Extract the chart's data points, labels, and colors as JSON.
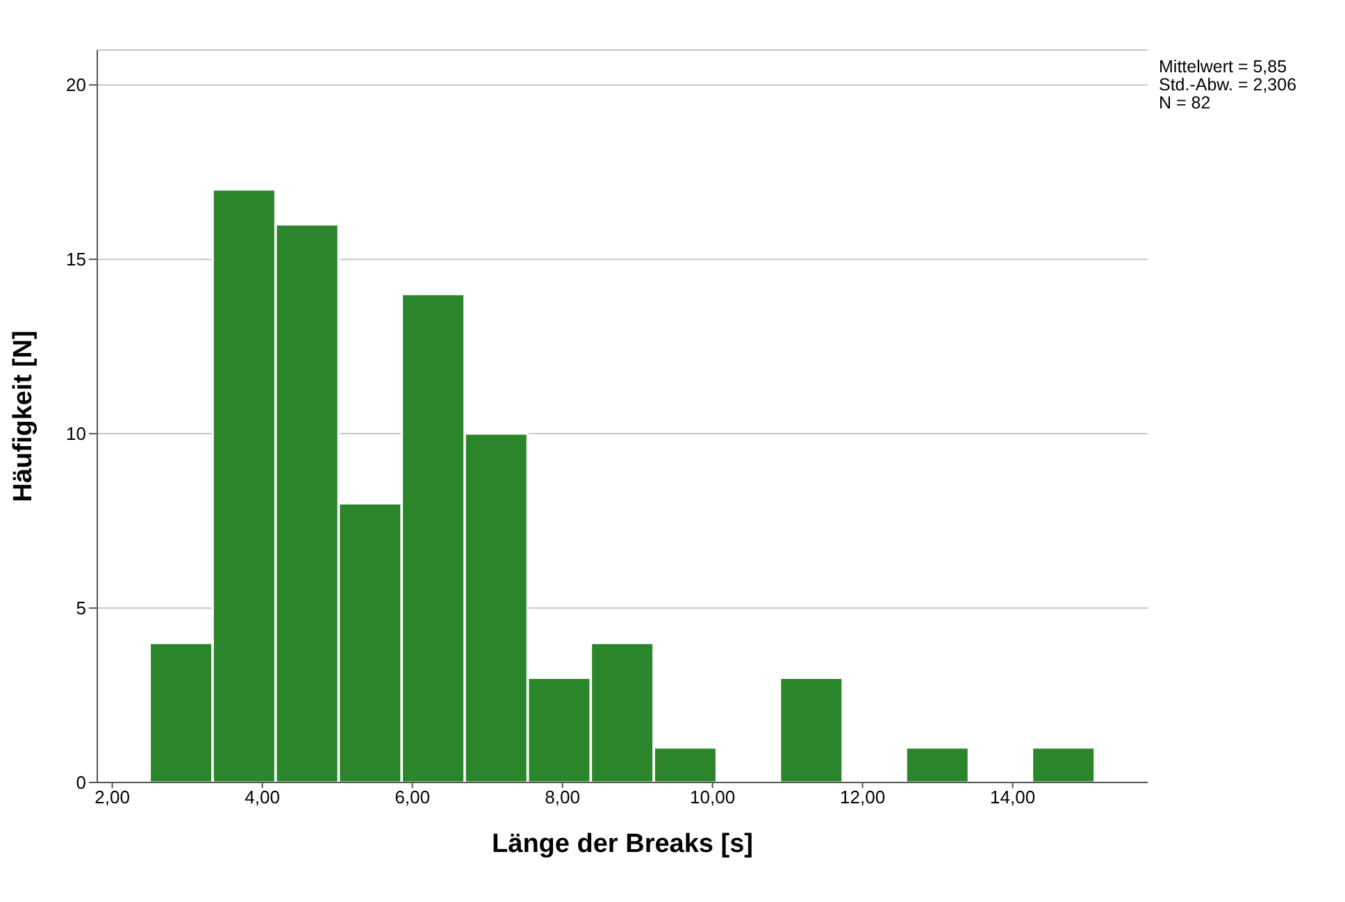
{
  "chart_data": {
    "type": "histogram",
    "xlabel": "Länge der Breaks [s]",
    "ylabel": "Häufigkeit [N]",
    "bins": [
      2.5,
      3.34,
      4.18,
      5.02,
      5.86,
      6.7,
      7.54,
      8.38,
      9.22,
      10.06,
      10.9,
      11.74,
      12.58,
      13.42,
      14.26,
      15.1
    ],
    "values": [
      4,
      17,
      16,
      8,
      14,
      10,
      3,
      4,
      1,
      0,
      3,
      0,
      1,
      0,
      1
    ],
    "color": "#2b862b",
    "xlim": [
      1.8,
      15.8
    ],
    "xticks": [
      {
        "value": 2,
        "label": "2,00"
      },
      {
        "value": 4,
        "label": "4,00"
      },
      {
        "value": 6,
        "label": "6,00"
      },
      {
        "value": 8,
        "label": "8,00"
      },
      {
        "value": 10,
        "label": "10,00"
      },
      {
        "value": 12,
        "label": "12,00"
      },
      {
        "value": 14,
        "label": "14,00"
      }
    ],
    "ylim": [
      0,
      21
    ],
    "yticks": [
      0,
      5,
      10,
      15,
      20
    ],
    "grid": "y",
    "annotations": [
      "Mittelwert = 5,85",
      "Std.-Abw. = 2,306",
      "N = 82"
    ]
  }
}
